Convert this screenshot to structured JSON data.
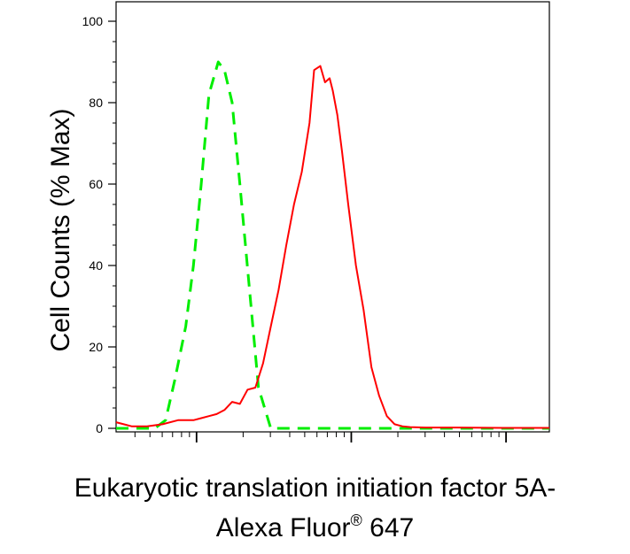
{
  "chart_data": {
    "type": "line",
    "ylabel": "Cell Counts (% Max)",
    "xlabel_line1": "Eukaryotic translation initiation factor 5A-",
    "xlabel_line2_main": "Alexa Fluor",
    "xlabel_line2_mark": "®",
    "xlabel_line2_suffix": " 647",
    "y_ticks": [
      0,
      20,
      40,
      60,
      80,
      100
    ],
    "ylim": [
      0,
      100
    ],
    "x_scale": "log",
    "xlim_decades": [
      0,
      2.8
    ],
    "grid": false,
    "series": [
      {
        "color": "#00ee00",
        "style": "dashed",
        "x": [
          0.0,
          0.12,
          0.2,
          0.25,
          0.32,
          0.38,
          0.45,
          0.5,
          0.55,
          0.6,
          0.66,
          0.7,
          0.75,
          0.8,
          0.86,
          0.92,
          1.0,
          1.1,
          1.3,
          1.6,
          2.0,
          2.4,
          2.8
        ],
        "y": [
          0,
          0,
          0,
          0,
          2,
          12,
          25,
          40,
          60,
          82,
          90,
          88,
          80,
          60,
          35,
          10,
          0,
          0,
          0,
          0,
          0,
          0,
          0
        ]
      },
      {
        "color": "#ff0000",
        "style": "solid",
        "x": [
          0.0,
          0.05,
          0.1,
          0.2,
          0.3,
          0.4,
          0.5,
          0.55,
          0.6,
          0.65,
          0.7,
          0.75,
          0.8,
          0.85,
          0.9,
          0.95,
          1.0,
          1.05,
          1.1,
          1.15,
          1.2,
          1.25,
          1.28,
          1.32,
          1.35,
          1.38,
          1.4,
          1.43,
          1.46,
          1.5,
          1.55,
          1.6,
          1.65,
          1.7,
          1.75,
          1.8,
          1.85,
          1.9,
          2.0,
          2.2,
          2.5,
          2.8
        ],
        "y": [
          1.5,
          1.0,
          0.5,
          0.5,
          1.0,
          2.0,
          2.0,
          2.5,
          3.0,
          3.5,
          4.5,
          6.5,
          6.0,
          9.5,
          10.0,
          16.0,
          25.0,
          34.0,
          45.0,
          55.0,
          63.0,
          75.0,
          88.0,
          89.0,
          85.0,
          86.0,
          83.0,
          77.0,
          68.0,
          55.0,
          40.0,
          29.0,
          15.0,
          8.0,
          3.0,
          1.0,
          0.5,
          0.3,
          0.2,
          0.2,
          0.1,
          0.1
        ]
      }
    ]
  }
}
